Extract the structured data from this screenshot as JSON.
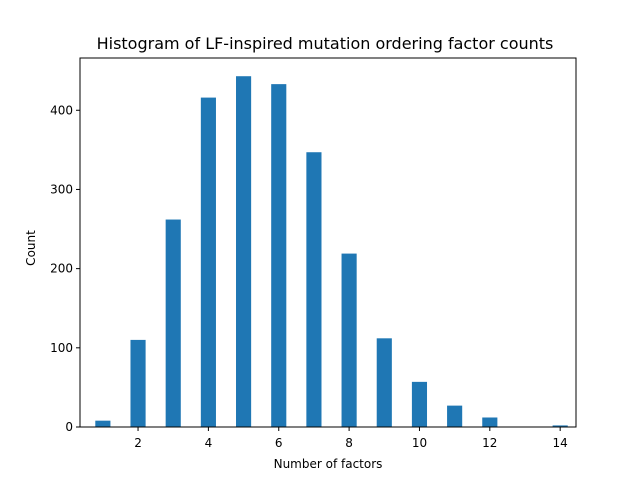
{
  "chart_data": {
    "type": "bar",
    "title": "Histogram of LF-inspired mutation ordering factor counts",
    "xlabel": "Number of factors",
    "ylabel": "Count",
    "x": [
      1,
      2,
      3,
      4,
      5,
      6,
      7,
      8,
      9,
      10,
      11,
      12,
      14
    ],
    "values": [
      8,
      110,
      262,
      416,
      443,
      433,
      347,
      219,
      112,
      57,
      27,
      12,
      2
    ],
    "xlim": [
      0.35,
      14.45
    ],
    "ylim": [
      0,
      466
    ],
    "xticks": [
      2,
      4,
      6,
      8,
      10,
      12,
      14
    ],
    "yticks": [
      0,
      100,
      200,
      300,
      400
    ],
    "bar_color": "#1f77b4",
    "grid": false,
    "legend": "none"
  }
}
